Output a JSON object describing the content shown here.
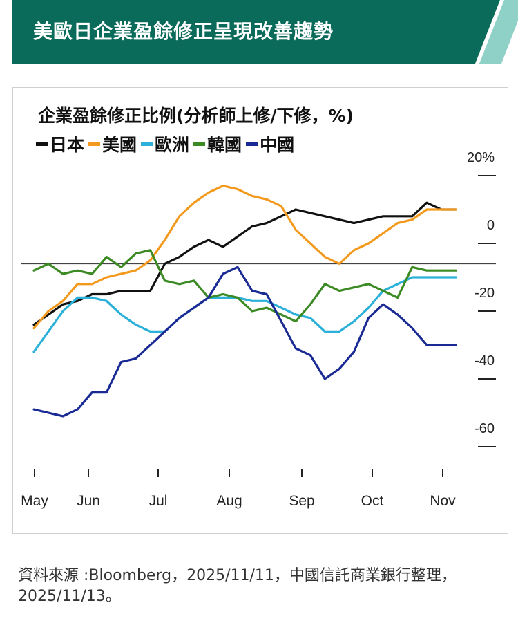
{
  "header": {
    "title": "美歐日企業盈餘修正呈現改善趨勢",
    "bg_color": "#0b6b5a",
    "accent_color": "#8fd0c7"
  },
  "chart_data": {
    "type": "line",
    "title": "企業盈餘修正比例(分析師上修/下修，%)",
    "x_ticks": [
      "May",
      "Jun",
      "Jul",
      "Aug",
      "Sep",
      "Oct",
      "Nov"
    ],
    "x_range": [
      0,
      29
    ],
    "y_ticks": [
      20,
      0,
      -20,
      -40,
      -60
    ],
    "y_tick_labels": [
      "20%",
      "0",
      "-20",
      "-40",
      "-60"
    ],
    "ylim": [
      -70,
      30
    ],
    "reference_line": -6,
    "x": [
      0,
      1,
      2,
      3,
      4,
      5,
      6,
      7,
      8,
      9,
      10,
      11,
      12,
      13,
      14,
      15,
      16,
      17,
      18,
      19,
      20,
      21,
      22,
      23,
      24,
      25,
      26,
      27,
      28,
      29
    ],
    "series": [
      {
        "name": "日本",
        "color": "#111111",
        "values": [
          -24,
          -21,
          -18,
          -17,
          -15,
          -15,
          -14,
          -14,
          -14,
          -6,
          -4,
          -1,
          1,
          -1,
          2,
          5,
          6,
          8,
          10,
          9,
          8,
          7,
          6,
          7,
          8,
          8,
          8,
          12,
          10,
          10
        ]
      },
      {
        "name": "美國",
        "color": "#f39a1e",
        "values": [
          -25,
          -20,
          -17,
          -12,
          -12,
          -10,
          -9,
          -8,
          -5,
          1,
          8,
          12,
          15,
          17,
          16,
          14,
          13,
          11,
          4,
          0,
          -4,
          -6,
          -2,
          0,
          3,
          6,
          7,
          10,
          10,
          10
        ]
      },
      {
        "name": "歐洲",
        "color": "#2ab0d9",
        "values": [
          -32,
          -26,
          -20,
          -16,
          -16,
          -17,
          -21,
          -24,
          -26,
          -26,
          -22,
          -19,
          -16,
          -16,
          -16,
          -17,
          -17,
          -19,
          -21,
          -22,
          -26,
          -26,
          -23,
          -19,
          -14,
          -12,
          -10,
          -10,
          -10,
          -10
        ]
      },
      {
        "name": "韓國",
        "color": "#3b8a24",
        "values": [
          -8,
          -6,
          -9,
          -8,
          -9,
          -4,
          -7,
          -3,
          -2,
          -11,
          -12,
          -11,
          -16,
          -15,
          -16,
          -20,
          -19,
          -21,
          -23,
          -18,
          -12,
          -14,
          -13,
          -12,
          -14,
          -16,
          -7,
          -8,
          -8,
          -8
        ]
      },
      {
        "name": "中國",
        "color": "#1a2a94",
        "values": [
          -49,
          -50,
          -51,
          -49,
          -44,
          -44,
          -35,
          -34,
          -30,
          -26,
          -22,
          -19,
          -16,
          -9,
          -7,
          -14,
          -15,
          -23,
          -31,
          -33,
          -40,
          -37,
          -32,
          -22,
          -18,
          -21,
          -25,
          -30,
          -30,
          -30
        ]
      }
    ]
  },
  "source": {
    "text": "資料來源 :Bloomberg，2025/11/11，中國信託商業銀行整理，2025/11/13。"
  }
}
